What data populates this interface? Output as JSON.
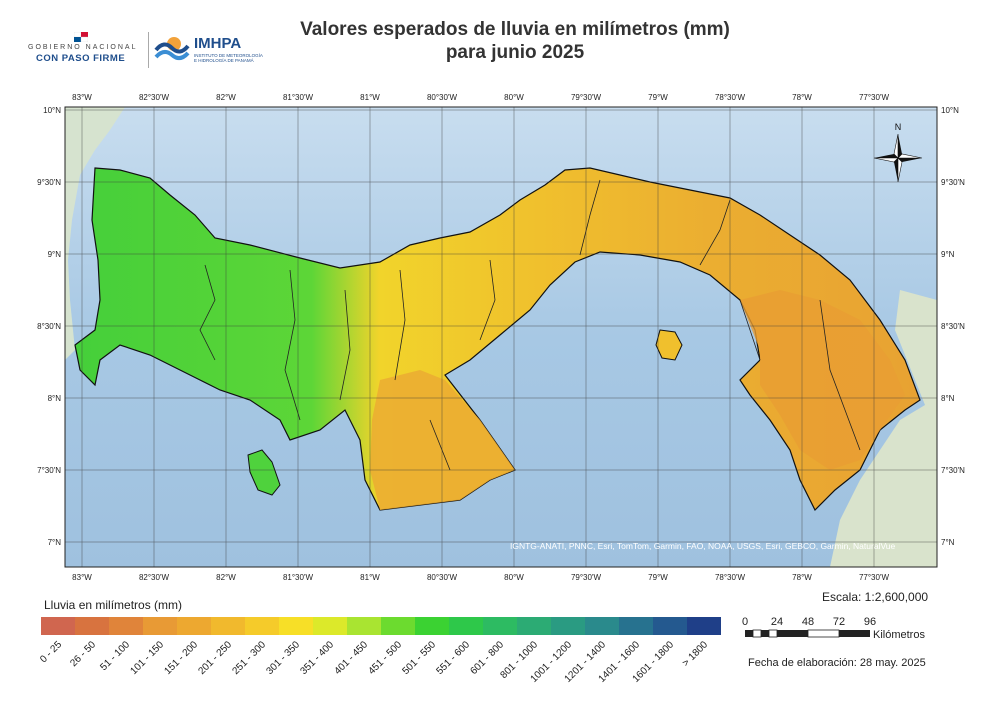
{
  "header": {
    "gov_small": "GOBIERNO NACIONAL",
    "gov_big": "CON PASO FIRME",
    "institute": "IMHPA",
    "institute_sub": "INSTITUTO DE METEOROLOGÍA E HIDROLOGÍA DE PANAMÁ"
  },
  "map": {
    "title_line1": "Valores esperados de lluvia en milímetros (mm)",
    "title_line2": "para junio 2025",
    "lon_labels": [
      "83°W",
      "82°30'W",
      "82°W",
      "81°30'W",
      "81°W",
      "80°30'W",
      "80°W",
      "79°30'W",
      "79°W",
      "78°30'W",
      "78°W",
      "77°30'W"
    ],
    "lat_labels": [
      "10°N",
      "9°30'N",
      "9°N",
      "8°30'N",
      "8°N",
      "7°30'N",
      "7°N"
    ],
    "north_label": "N",
    "attribution": "IGNTG-ANATI, PNNC, Esri, TomTom, Garmin, FAO, NOAA, USGS, Esri, GEBCO, Garmin, NaturalVue"
  },
  "legend": {
    "title": "Lluvia en milímetros (mm)",
    "classes": [
      {
        "label": "0 - 25",
        "color": "#d0664f"
      },
      {
        "label": "26 - 50",
        "color": "#d8733f"
      },
      {
        "label": "51 - 100",
        "color": "#e0843a"
      },
      {
        "label": "101 - 150",
        "color": "#e89a35"
      },
      {
        "label": "151 - 200",
        "color": "#eda830"
      },
      {
        "label": "201 - 250",
        "color": "#f1b92d"
      },
      {
        "label": "251 - 300",
        "color": "#f5cb2a"
      },
      {
        "label": "301 - 350",
        "color": "#f7df27"
      },
      {
        "label": "351 - 400",
        "color": "#dce92a"
      },
      {
        "label": "401 - 450",
        "color": "#a9e431"
      },
      {
        "label": "451 - 500",
        "color": "#6cdb2f"
      },
      {
        "label": "501 - 550",
        "color": "#3bd232"
      },
      {
        "label": "551 - 600",
        "color": "#2ec84a"
      },
      {
        "label": "601 - 800",
        "color": "#2dbb62"
      },
      {
        "label": "801 - 1000",
        "color": "#2cab74"
      },
      {
        "label": "1001 - 1200",
        "color": "#2a9b82"
      },
      {
        "label": "1201 - 1400",
        "color": "#2a8a8c"
      },
      {
        "label": "1401 - 1600",
        "color": "#27728f"
      },
      {
        "label": "1601 - 1800",
        "color": "#24598f"
      },
      {
        "label": "> 1800",
        "color": "#1f3f88"
      }
    ]
  },
  "scale": {
    "text": "Escala: 1:2,600,000",
    "ticks": [
      "0",
      "24",
      "48",
      "72",
      "96"
    ],
    "unit": "Kilómetros"
  },
  "footer": {
    "date": "Fecha de elaboración: 28 may. 2025"
  },
  "colors": {
    "sea": "#9fc3e1",
    "sea_light": "#c3dbee",
    "land_outside": "#d9e4d0",
    "panama_green": "#48d23a",
    "panama_yellow": "#f4d22a",
    "panama_orange": "#eaa733",
    "grid": "#3a3a3a"
  }
}
